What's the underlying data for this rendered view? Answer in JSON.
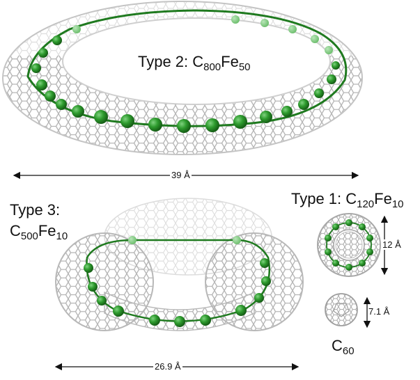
{
  "labels": {
    "type2": {
      "name": "Type 2:",
      "formula": [
        [
          "C",
          "800"
        ],
        [
          "Fe",
          "50"
        ]
      ]
    },
    "type3": {
      "name": "Type 3:",
      "formula": [
        [
          "C",
          "500"
        ],
        [
          "Fe",
          "10"
        ]
      ]
    },
    "type1": {
      "name": "Type 1:",
      "formula": [
        [
          "C",
          "120"
        ],
        [
          "Fe",
          "10"
        ]
      ]
    },
    "c60": {
      "formula": [
        [
          "C",
          "60"
        ]
      ]
    }
  },
  "dimensions": {
    "type2_width": "39 Å",
    "type3_width": "26.9 Å",
    "type1_diameter": "12 Å",
    "c60_diameter": "7.1 Å"
  },
  "colors": {
    "cage": "#b9b9b9",
    "cage_light": "#dcdcdc",
    "iron": "#2e8b2e",
    "iron_chain": "#1f7a1f",
    "arrow": "#111111"
  }
}
